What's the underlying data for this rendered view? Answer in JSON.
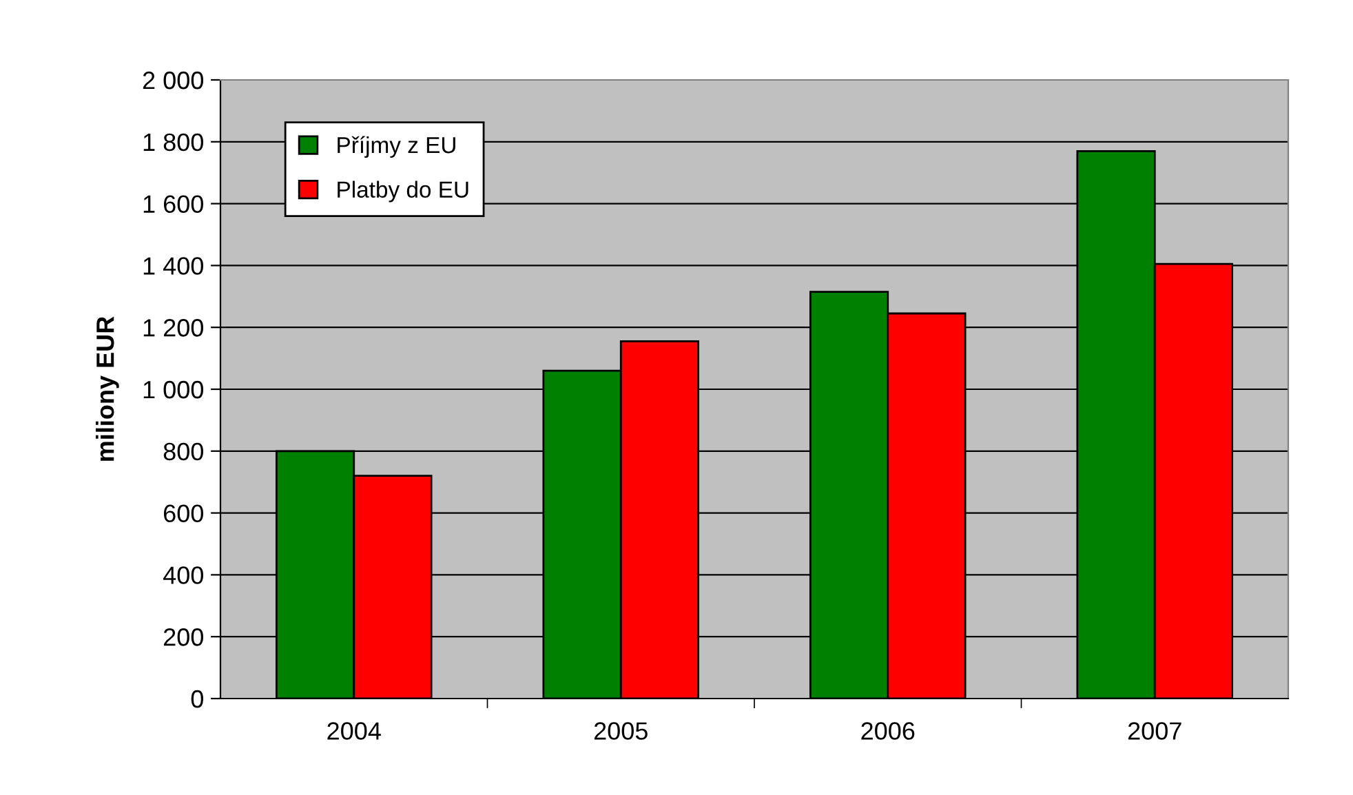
{
  "chart_data": {
    "type": "bar",
    "ylabel": "miliony EUR",
    "categories": [
      "2004",
      "2005",
      "2006",
      "2007"
    ],
    "series": [
      {
        "name": "Příjmy z EU",
        "color": "#008000",
        "values": [
          800,
          1060,
          1315,
          1770
        ]
      },
      {
        "name": "Platby do EU",
        "color": "#ff0000",
        "values": [
          720,
          1155,
          1245,
          1405
        ]
      }
    ],
    "ylim": [
      0,
      2000
    ],
    "yticks": [
      {
        "value": 0,
        "label": "0"
      },
      {
        "value": 200,
        "label": "200"
      },
      {
        "value": 400,
        "label": "400"
      },
      {
        "value": 600,
        "label": "600"
      },
      {
        "value": 800,
        "label": "800"
      },
      {
        "value": 1000,
        "label": "1 000"
      },
      {
        "value": 1200,
        "label": "1 200"
      },
      {
        "value": 1400,
        "label": "1 400"
      },
      {
        "value": 1600,
        "label": "1 600"
      },
      {
        "value": 1800,
        "label": "1 800"
      },
      {
        "value": 2000,
        "label": "2 000"
      }
    ],
    "grid": "y",
    "legend": "top left"
  }
}
